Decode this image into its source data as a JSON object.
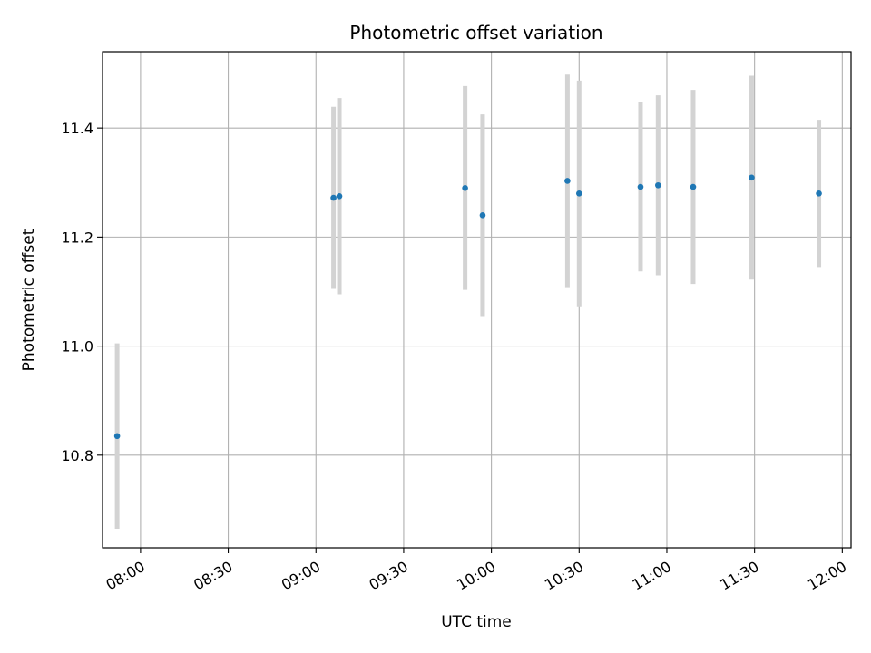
{
  "chart_data": {
    "type": "scatter",
    "title": "Photometric offset variation",
    "xlabel": "UTC time",
    "ylabel": "Photometric offset",
    "x_unit": "time (HH:MM, UTC)",
    "xlim": [
      "07:47",
      "12:03"
    ],
    "ylim": [
      10.63,
      11.54
    ],
    "x_ticks": [
      "08:00",
      "08:30",
      "09:00",
      "09:30",
      "10:00",
      "10:30",
      "11:00",
      "11:30",
      "12:00"
    ],
    "y_ticks": [
      10.8,
      11.0,
      11.2,
      11.4
    ],
    "grid": true,
    "legend": "none",
    "colors": {
      "point": "#1f77b4",
      "errorbar": "#d3d3d3",
      "grid": "#b0b0b0"
    },
    "series": [
      {
        "points": [
          {
            "x": "07:52",
            "y": 10.835,
            "yerr": 0.17
          },
          {
            "x": "09:06",
            "y": 11.272,
            "yerr": 0.167
          },
          {
            "x": "09:08",
            "y": 11.275,
            "yerr": 0.18
          },
          {
            "x": "09:51",
            "y": 11.29,
            "yerr": 0.187
          },
          {
            "x": "09:57",
            "y": 11.24,
            "yerr": 0.185
          },
          {
            "x": "10:26",
            "y": 11.303,
            "yerr": 0.195
          },
          {
            "x": "10:30",
            "y": 11.28,
            "yerr": 0.207
          },
          {
            "x": "10:51",
            "y": 11.292,
            "yerr": 0.155
          },
          {
            "x": "10:57",
            "y": 11.295,
            "yerr": 0.165
          },
          {
            "x": "11:09",
            "y": 11.292,
            "yerr": 0.178
          },
          {
            "x": "11:29",
            "y": 11.309,
            "yerr": 0.187
          },
          {
            "x": "11:52",
            "y": 11.28,
            "yerr": 0.135
          }
        ]
      }
    ]
  }
}
